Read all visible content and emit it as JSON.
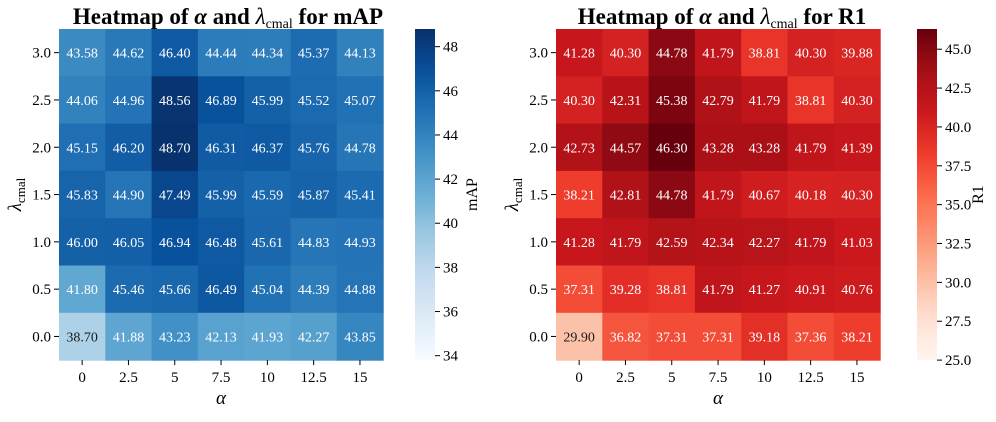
{
  "chart_data": [
    {
      "type": "heatmap",
      "title": "Heatmap of α and λ_cmal for mAP",
      "title_parts": {
        "prefix": "Heatmap of ",
        "alpha": "α",
        "mid": " and ",
        "lambda": "λ",
        "sub": "cmal",
        "suffix": " for mAP"
      },
      "xlabel": "α",
      "ylabel": {
        "main": "λ",
        "sub": "cmal"
      },
      "x_ticks": [
        "0",
        "2.5",
        "5",
        "7.5",
        "10",
        "12.5",
        "15"
      ],
      "y_ticks": [
        "3.0",
        "2.5",
        "2.0",
        "1.5",
        "1.0",
        "0.5",
        "0.0"
      ],
      "values": [
        [
          "43.58",
          "44.62",
          "46.40",
          "44.44",
          "44.34",
          "45.37",
          "44.13"
        ],
        [
          "44.06",
          "44.96",
          "48.56",
          "46.89",
          "45.99",
          "45.52",
          "45.07"
        ],
        [
          "45.15",
          "46.20",
          "48.70",
          "46.31",
          "46.37",
          "45.76",
          "44.78"
        ],
        [
          "45.83",
          "44.90",
          "47.49",
          "45.99",
          "45.59",
          "45.87",
          "45.41"
        ],
        [
          "46.00",
          "46.05",
          "46.94",
          "46.48",
          "45.61",
          "44.83",
          "44.93"
        ],
        [
          "41.80",
          "45.46",
          "45.66",
          "46.49",
          "45.04",
          "44.39",
          "44.88"
        ],
        [
          "38.70",
          "41.88",
          "43.23",
          "42.13",
          "41.93",
          "42.27",
          "43.85"
        ]
      ],
      "colormap": "Blues",
      "colorbar": {
        "label": "mAP",
        "range": [
          33.8,
          48.8
        ],
        "ticks": [
          "34",
          "36",
          "38",
          "40",
          "42",
          "44",
          "46",
          "48"
        ]
      }
    },
    {
      "type": "heatmap",
      "title": "Heatmap of α and λ_cmal for R1",
      "title_parts": {
        "prefix": "Heatmap of ",
        "alpha": "α",
        "mid": " and ",
        "lambda": "λ",
        "sub": "cmal",
        "suffix": " for R1"
      },
      "xlabel": "α",
      "ylabel": {
        "main": "λ",
        "sub": "cmal"
      },
      "x_ticks": [
        "0",
        "2.5",
        "5",
        "7.5",
        "10",
        "12.5",
        "15"
      ],
      "y_ticks": [
        "3.0",
        "2.5",
        "2.0",
        "1.5",
        "1.0",
        "0.5",
        "0.0"
      ],
      "values": [
        [
          "41.28",
          "40.30",
          "44.78",
          "41.79",
          "38.81",
          "40.30",
          "39.88"
        ],
        [
          "40.30",
          "42.31",
          "45.38",
          "42.79",
          "41.79",
          "38.81",
          "40.30"
        ],
        [
          "42.73",
          "44.57",
          "46.30",
          "43.28",
          "43.28",
          "41.79",
          "41.39"
        ],
        [
          "38.21",
          "42.81",
          "44.78",
          "41.79",
          "40.67",
          "40.18",
          "40.30"
        ],
        [
          "41.28",
          "41.79",
          "42.59",
          "42.34",
          "42.27",
          "41.79",
          "41.03"
        ],
        [
          "37.31",
          "39.28",
          "38.81",
          "41.79",
          "41.27",
          "40.91",
          "40.76"
        ],
        [
          "29.90",
          "36.82",
          "37.31",
          "37.31",
          "39.18",
          "37.36",
          "38.21"
        ]
      ],
      "colormap": "Reds",
      "colorbar": {
        "label": "R1",
        "range": [
          25.0,
          46.3
        ],
        "ticks": [
          "25.0",
          "27.5",
          "30.0",
          "32.5",
          "35.0",
          "37.5",
          "40.0",
          "42.5",
          "45.0"
        ]
      }
    }
  ]
}
